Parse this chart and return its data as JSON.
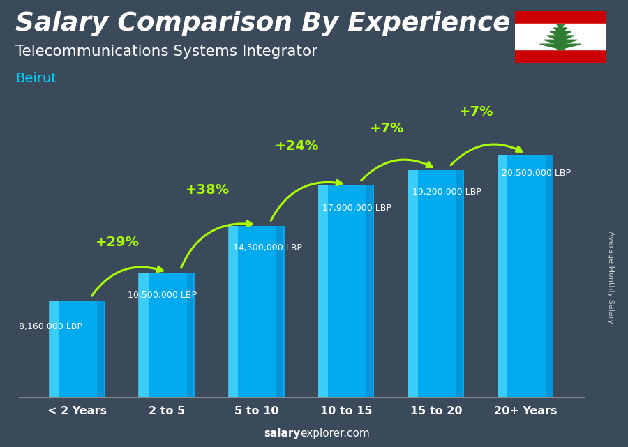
{
  "title": "Salary Comparison By Experience",
  "subtitle": "Telecommunications Systems Integrator",
  "city": "Beirut",
  "categories": [
    "< 2 Years",
    "2 to 5",
    "5 to 10",
    "10 to 15",
    "15 to 20",
    "20+ Years"
  ],
  "values": [
    8160000,
    10500000,
    14500000,
    17900000,
    19200000,
    20500000
  ],
  "labels": [
    "8,160,000 LBP",
    "10,500,000 LBP",
    "14,500,000 LBP",
    "17,900,000 LBP",
    "19,200,000 LBP",
    "20,500,000 LBP"
  ],
  "pct_labels": [
    "+29%",
    "+38%",
    "+24%",
    "+7%",
    "+7%"
  ],
  "bar_color_top": "#00CFFF",
  "bar_color_mid": "#00AAEE",
  "bg_color": "#3a4a5a",
  "title_color": "#FFFFFF",
  "subtitle_color": "#FFFFFF",
  "city_color": "#00CFFF",
  "label_color": "#FFFFFF",
  "pct_color": "#aaff00",
  "arrow_color": "#aaff00",
  "footer_salary_color": "#FFFFFF",
  "footer_explorer_color": "#FFFFFF",
  "ylabel_color": "#CCCCCC",
  "ylabel_text": "Average Monthly Salary",
  "ylim": [
    0,
    26000000
  ],
  "bar_width": 0.62
}
